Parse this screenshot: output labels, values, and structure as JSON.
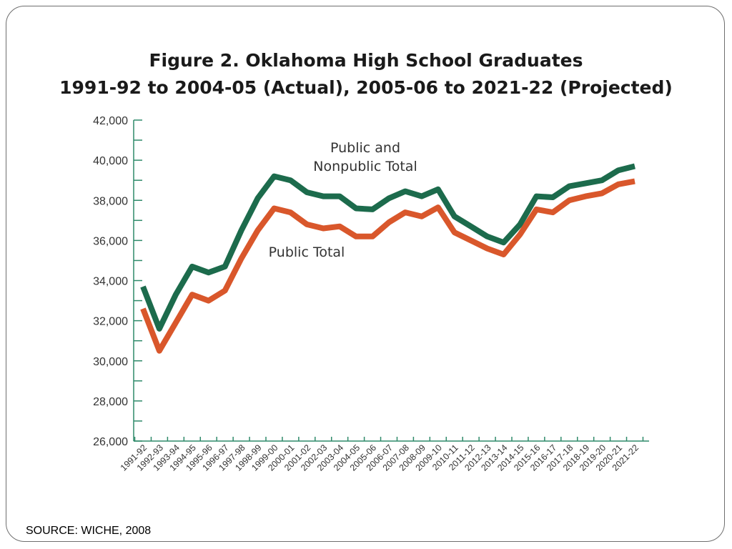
{
  "title_line1": "Figure 2.  Oklahoma High School Graduates",
  "title_line2": "1991-92 to 2004-05 (Actual), 2005-06 to 2021-22 (Projected)",
  "source": "SOURCE: WICHE, 2008",
  "colors": {
    "public_and_nonpublic": "#1c6b4c",
    "public": "#d9572b",
    "axis": "#2f8a6a",
    "text": "#333333"
  },
  "chart_data": {
    "type": "line",
    "x": [
      "1991-92",
      "1992-93",
      "1993-94",
      "1994-95",
      "1995-96",
      "1996-97",
      "1997-98",
      "1998-99",
      "1999-00",
      "2000-01",
      "2001-02",
      "2002-03",
      "2003-04",
      "2004-05",
      "2005-06",
      "2006-07",
      "2007-08",
      "2008-09",
      "2009-10",
      "2010-11",
      "2011-12",
      "2012-13",
      "2013-14",
      "2014-15",
      "2015-16",
      "2016-17",
      "2017-18",
      "2018-19",
      "2019-20",
      "2020-21",
      "2021-22"
    ],
    "ylim": [
      26000,
      42000
    ],
    "yticks": [
      26000,
      28000,
      30000,
      32000,
      34000,
      36000,
      38000,
      40000,
      42000
    ],
    "ytick_labels": [
      "26,000",
      "28,000",
      "30,000",
      "32,000",
      "34,000",
      "36,000",
      "38,000",
      "40,000",
      "42,000"
    ],
    "series": [
      {
        "name": "Public and\nNonpublic Total",
        "values": [
          33700,
          31600,
          33300,
          34700,
          34400,
          34700,
          36500,
          38100,
          39200,
          39000,
          38400,
          38200,
          38200,
          37600,
          37550,
          38100,
          38450,
          38200,
          38550,
          37200,
          36700,
          36200,
          35900,
          36800,
          38200,
          38150,
          38700,
          38850,
          39000,
          39500,
          39700
        ]
      },
      {
        "name": "Public Total",
        "values": [
          32600,
          30500,
          31900,
          33300,
          33000,
          33500,
          35100,
          36500,
          37600,
          37400,
          36800,
          36600,
          36700,
          36200,
          36200,
          36900,
          37400,
          37200,
          37650,
          36400,
          36000,
          35600,
          35300,
          36300,
          37550,
          37400,
          38000,
          38200,
          38350,
          38800,
          38950
        ]
      }
    ]
  }
}
